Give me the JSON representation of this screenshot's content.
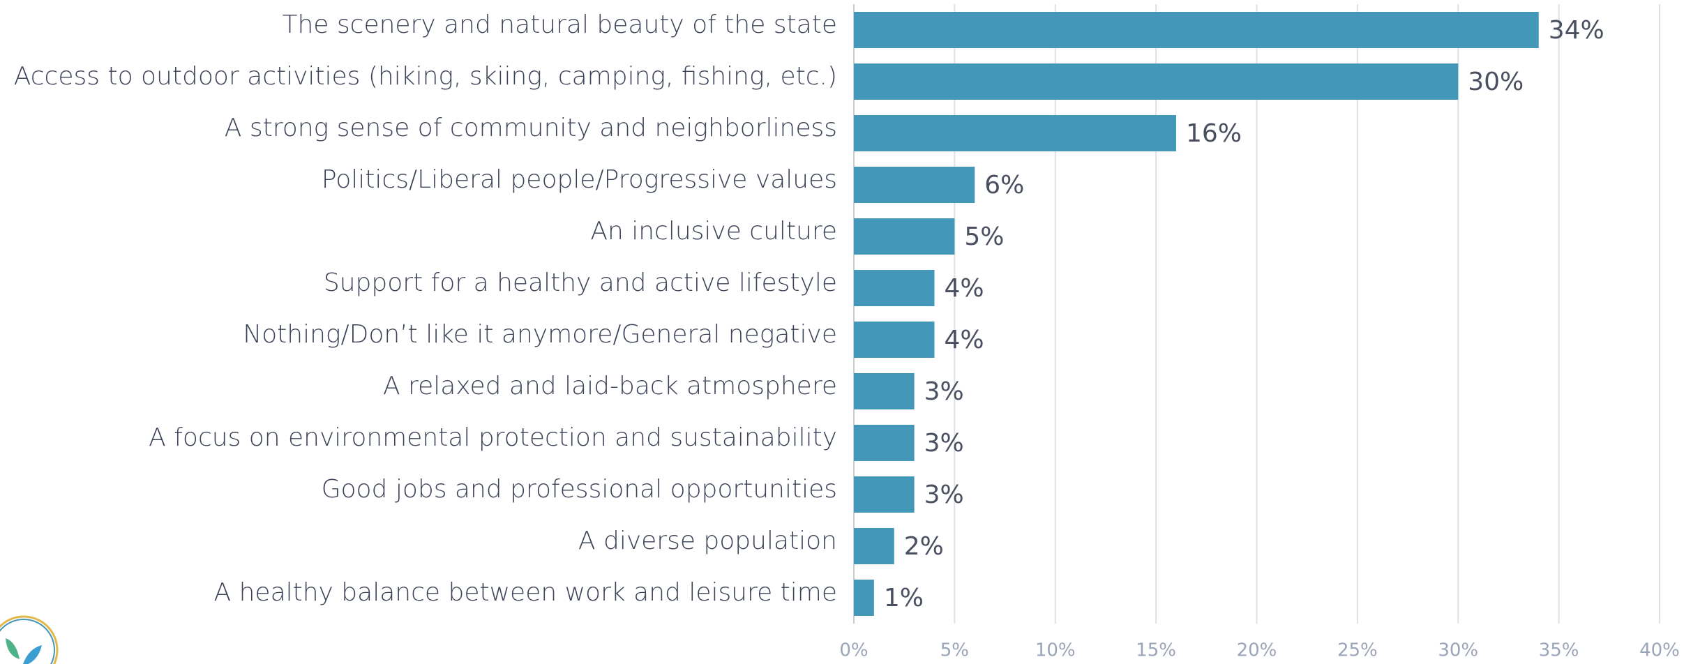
{
  "chart_data": {
    "type": "bar",
    "orientation": "horizontal",
    "color": "#4397b8",
    "grid": true,
    "categories": [
      "The scenery and natural beauty of the state",
      "Access to outdoor activities (hiking, skiing, camping, fishing, etc.)",
      "A strong sense of community and neighborliness",
      "Politics/Liberal people/Progressive values",
      "An inclusive culture",
      "Support for a healthy and active lifestyle",
      "Nothing/Don’t like it anymore/General negative",
      "A relaxed and laid-back atmosphere",
      "A focus on environmental protection and sustainability",
      "Good jobs and professional opportunities",
      "A diverse population",
      "A healthy balance between work and leisure time"
    ],
    "values": [
      34,
      30,
      16,
      6,
      5,
      4,
      4,
      3,
      3,
      3,
      2,
      1
    ],
    "value_labels": [
      "34%",
      "30%",
      "16%",
      "6%",
      "5%",
      "4%",
      "4%",
      "3%",
      "3%",
      "3%",
      "2%",
      "1%"
    ],
    "xlim": [
      0,
      40
    ],
    "xticks": [
      {
        "value": 0,
        "label": "0%"
      },
      {
        "value": 5,
        "label": "5%"
      },
      {
        "value": 10,
        "label": "10%"
      },
      {
        "value": 15,
        "label": "15%"
      },
      {
        "value": 20,
        "label": "20%"
      },
      {
        "value": 25,
        "label": "25%"
      },
      {
        "value": 30,
        "label": "30%"
      },
      {
        "value": 35,
        "label": "35%"
      },
      {
        "value": 40,
        "label": "40%"
      }
    ]
  }
}
